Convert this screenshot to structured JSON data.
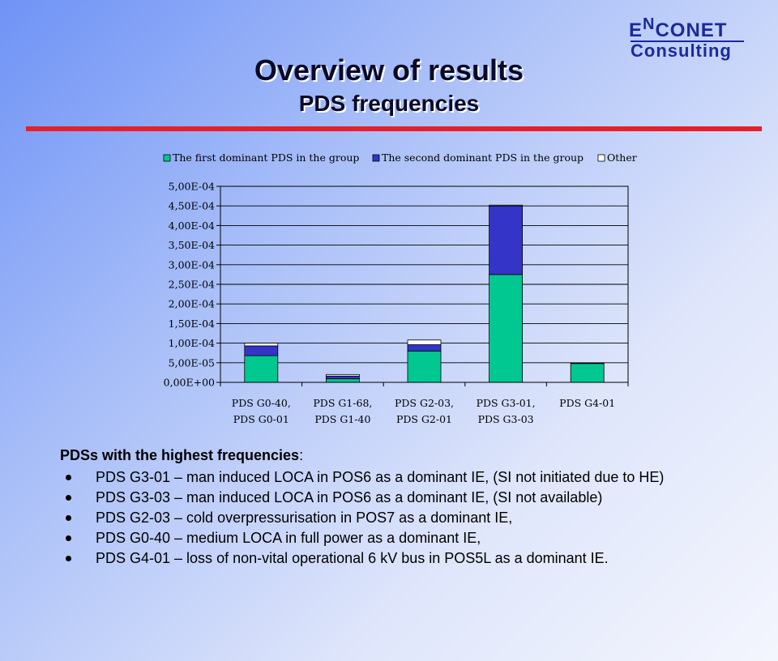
{
  "logo": {
    "line1_prefix": "E",
    "line1_n": "N",
    "line1_rest": "CONET",
    "line2": "Consulting"
  },
  "title": "Overview of results",
  "subtitle": "PDS frequencies",
  "colors": {
    "accent_line": "#e4202a",
    "series1": "#00c890",
    "series2": "#3434c8",
    "series3": "#ffffff"
  },
  "chart_data": {
    "type": "bar",
    "stacked": true,
    "categories": [
      [
        "PDS G0-40,",
        "PDS G0-01"
      ],
      [
        "PDS G1-68,",
        "PDS G1-40"
      ],
      [
        "PDS G2-03,",
        "PDS  G2-01"
      ],
      [
        "PDS G3-01,",
        "PDS G3-03"
      ],
      [
        "PDS G4-01",
        ""
      ]
    ],
    "series": [
      {
        "name": "The first dominant PDS in the group",
        "color": "#00c890",
        "values": [
          6.8e-05,
          9e-06,
          8e-05,
          0.000275,
          4.8e-05
        ]
      },
      {
        "name": "The second dominant PDS in the group",
        "color": "#3434c8",
        "values": [
          2.5e-05,
          7e-06,
          1.6e-05,
          0.000175,
          0
        ]
      },
      {
        "name": "Other",
        "color": "#ffffff",
        "values": [
          7e-06,
          4e-06,
          1.2e-05,
          2e-06,
          1e-06
        ]
      }
    ],
    "ylim": [
      0,
      0.0005
    ],
    "yticks": [
      "0,00E+00",
      "5,00E-05",
      "1,00E-04",
      "1,50E-04",
      "2,00E-04",
      "2,50E-04",
      "3,00E-04",
      "3,50E-04",
      "4,00E-04",
      "4,50E-04",
      "5,00E-04"
    ],
    "grid": true,
    "legend_position": "top"
  },
  "bullets": {
    "heading_bold": "PDSs with the highest frequencies",
    "heading_tail": ":",
    "items": [
      "PDS G3-01 – man induced LOCA in POS6 as a dominant IE, (SI not initiated due to HE)",
      "PDS G3-03 – man induced LOCA in POS6 as a dominant IE, (SI not available)",
      "PDS G2-03 – cold overpressurisation in POS7 as a dominant IE,",
      "PDS G0-40 – medium LOCA in full power as a dominant IE,",
      "PDS G4-01 – loss of non-vital operational 6 kV bus in POS5L as a dominant IE."
    ]
  }
}
